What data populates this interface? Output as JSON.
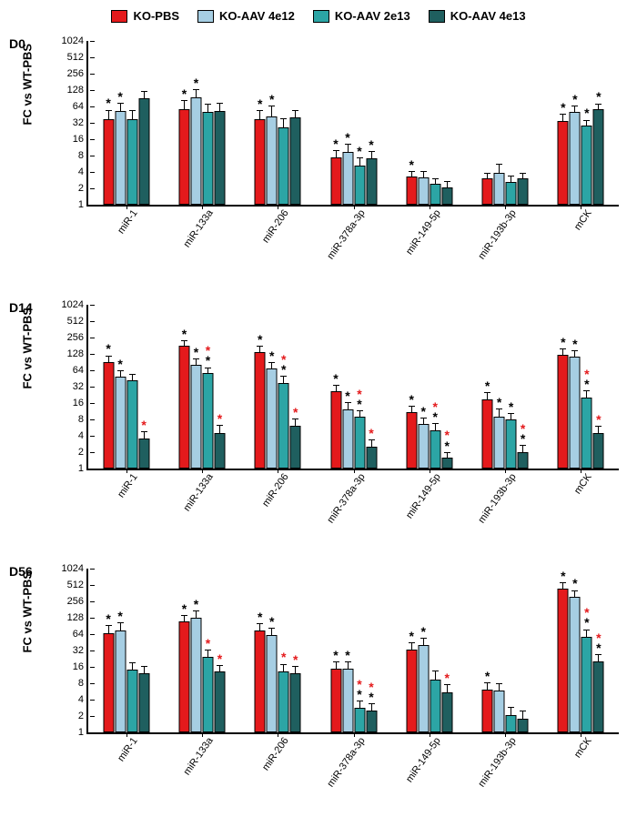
{
  "legend": {
    "items": [
      {
        "label": "KO-PBS",
        "color": "#e41a1c"
      },
      {
        "label": "KO-AAV 4e12",
        "color": "#a6cee3"
      },
      {
        "label": "KO-AAV 2e13",
        "color": "#2ca5a5"
      },
      {
        "label": "KO-AAV 4e13",
        "color": "#1f5f5f"
      }
    ]
  },
  "ylabel": "FC vs WT-PBS",
  "yticks": [
    1,
    2,
    4,
    8,
    16,
    32,
    64,
    128,
    256,
    512,
    1024
  ],
  "ymin_log": 0,
  "ymax_log": 10,
  "categories": [
    "miR-1",
    "miR-133a",
    "miR-206",
    "miR-378a-3p",
    "miR-149-5p",
    "miR-193b-3p",
    "mCK"
  ],
  "series_colors": [
    "#e41a1c",
    "#a6cee3",
    "#2ca5a5",
    "#1f5f5f"
  ],
  "panels": [
    {
      "label": "D0",
      "data": [
        {
          "bars": [
            {
              "v": 38,
              "e": 20,
              "s": [
                "k"
              ]
            },
            {
              "v": 52,
              "e": 25,
              "s": [
                "k"
              ]
            },
            {
              "v": 38,
              "e": 20,
              "s": []
            },
            {
              "v": 90,
              "e": 40,
              "s": []
            }
          ]
        },
        {
          "bars": [
            {
              "v": 58,
              "e": 30,
              "s": [
                "k"
              ]
            },
            {
              "v": 95,
              "e": 45,
              "s": [
                "k"
              ]
            },
            {
              "v": 50,
              "e": 25,
              "s": []
            },
            {
              "v": 52,
              "e": 25,
              "s": []
            }
          ]
        },
        {
          "bars": [
            {
              "v": 38,
              "e": 18,
              "s": [
                "k"
              ]
            },
            {
              "v": 42,
              "e": 28,
              "s": [
                "k"
              ]
            },
            {
              "v": 26,
              "e": 14,
              "s": []
            },
            {
              "v": 40,
              "e": 18,
              "s": []
            }
          ]
        },
        {
          "bars": [
            {
              "v": 7.5,
              "e": 3,
              "s": [
                "k"
              ]
            },
            {
              "v": 9.5,
              "e": 4,
              "s": [
                "k"
              ]
            },
            {
              "v": 5.2,
              "e": 2.5,
              "s": [
                "k"
              ]
            },
            {
              "v": 7,
              "e": 3,
              "s": [
                "k"
              ]
            }
          ]
        },
        {
          "bars": [
            {
              "v": 3.3,
              "e": 1,
              "s": [
                "k"
              ]
            },
            {
              "v": 3.2,
              "e": 1.2,
              "s": []
            },
            {
              "v": 2.4,
              "e": 0.8,
              "s": []
            },
            {
              "v": 2.1,
              "e": 0.7,
              "s": []
            }
          ]
        },
        {
          "bars": [
            {
              "v": 3,
              "e": 1,
              "s": []
            },
            {
              "v": 3.8,
              "e": 2,
              "s": []
            },
            {
              "v": 2.6,
              "e": 1,
              "s": []
            },
            {
              "v": 3,
              "e": 1,
              "s": []
            }
          ]
        },
        {
          "bars": [
            {
              "v": 34,
              "e": 14,
              "s": [
                "k"
              ]
            },
            {
              "v": 50,
              "e": 20,
              "s": [
                "k"
              ]
            },
            {
              "v": 28,
              "e": 10,
              "s": [
                "k"
              ]
            },
            {
              "v": 56,
              "e": 20,
              "s": [
                "k"
              ]
            }
          ]
        }
      ]
    },
    {
      "label": "D14",
      "data": [
        {
          "bars": [
            {
              "v": 90,
              "e": 35,
              "s": [
                "k"
              ]
            },
            {
              "v": 48,
              "e": 18,
              "s": [
                "k"
              ]
            },
            {
              "v": 42,
              "e": 15,
              "s": []
            },
            {
              "v": 3.5,
              "e": 1.5,
              "s": [
                "r"
              ]
            }
          ]
        },
        {
          "bars": [
            {
              "v": 180,
              "e": 60,
              "s": [
                "k"
              ]
            },
            {
              "v": 80,
              "e": 30,
              "s": [
                "k"
              ]
            },
            {
              "v": 56,
              "e": 20,
              "s": [
                "k",
                "r"
              ]
            },
            {
              "v": 4.5,
              "e": 2,
              "s": [
                "r"
              ]
            }
          ]
        },
        {
          "bars": [
            {
              "v": 140,
              "e": 50,
              "s": [
                "k"
              ]
            },
            {
              "v": 68,
              "e": 25,
              "s": [
                "k"
              ]
            },
            {
              "v": 38,
              "e": 14,
              "s": [
                "k",
                "r"
              ]
            },
            {
              "v": 6,
              "e": 2.5,
              "s": [
                "r"
              ]
            }
          ]
        },
        {
          "bars": [
            {
              "v": 26,
              "e": 10,
              "s": [
                "k"
              ]
            },
            {
              "v": 12,
              "e": 5,
              "s": [
                "k"
              ]
            },
            {
              "v": 9,
              "e": 3,
              "s": [
                "k",
                "r"
              ]
            },
            {
              "v": 2.5,
              "e": 1,
              "s": [
                "r"
              ]
            }
          ]
        },
        {
          "bars": [
            {
              "v": 11,
              "e": 4,
              "s": [
                "k"
              ]
            },
            {
              "v": 6.5,
              "e": 2.5,
              "s": [
                "k"
              ]
            },
            {
              "v": 5,
              "e": 2,
              "s": [
                "k",
                "r"
              ]
            },
            {
              "v": 1.6,
              "e": 0.5,
              "s": [
                "k",
                "r"
              ]
            }
          ]
        },
        {
          "bars": [
            {
              "v": 19,
              "e": 7,
              "s": [
                "k"
              ]
            },
            {
              "v": 9,
              "e": 4,
              "s": [
                "k"
              ]
            },
            {
              "v": 8,
              "e": 3,
              "s": [
                "k"
              ]
            },
            {
              "v": 2,
              "e": 0.8,
              "s": [
                "k",
                "r"
              ]
            }
          ]
        },
        {
          "bars": [
            {
              "v": 125,
              "e": 40,
              "s": [
                "k"
              ]
            },
            {
              "v": 115,
              "e": 40,
              "s": [
                "k"
              ]
            },
            {
              "v": 20,
              "e": 8,
              "s": [
                "k",
                "r"
              ]
            },
            {
              "v": 4.5,
              "e": 1.8,
              "s": [
                "r"
              ]
            }
          ]
        }
      ]
    },
    {
      "label": "D56",
      "data": [
        {
          "bars": [
            {
              "v": 66,
              "e": 30,
              "s": [
                "k"
              ]
            },
            {
              "v": 75,
              "e": 35,
              "s": [
                "k"
              ]
            },
            {
              "v": 14,
              "e": 6,
              "s": []
            },
            {
              "v": 12,
              "e": 5,
              "s": []
            }
          ]
        },
        {
          "bars": [
            {
              "v": 110,
              "e": 40,
              "s": [
                "k"
              ]
            },
            {
              "v": 130,
              "e": 50,
              "s": [
                "k"
              ]
            },
            {
              "v": 24,
              "e": 10,
              "s": [
                "r"
              ]
            },
            {
              "v": 13,
              "e": 5,
              "s": [
                "r"
              ]
            }
          ]
        },
        {
          "bars": [
            {
              "v": 75,
              "e": 30,
              "s": [
                "k"
              ]
            },
            {
              "v": 62,
              "e": 25,
              "s": [
                "k"
              ]
            },
            {
              "v": 13,
              "e": 6,
              "s": [
                "r"
              ]
            },
            {
              "v": 12,
              "e": 5,
              "s": [
                "r"
              ]
            }
          ]
        },
        {
          "bars": [
            {
              "v": 15,
              "e": 6,
              "s": [
                "k"
              ]
            },
            {
              "v": 15,
              "e": 6,
              "s": [
                "k"
              ]
            },
            {
              "v": 2.8,
              "e": 1.2,
              "s": [
                "k",
                "r"
              ]
            },
            {
              "v": 2.5,
              "e": 1,
              "s": [
                "k",
                "r"
              ]
            }
          ]
        },
        {
          "bars": [
            {
              "v": 33,
              "e": 14,
              "s": [
                "k"
              ]
            },
            {
              "v": 40,
              "e": 16,
              "s": [
                "k"
              ]
            },
            {
              "v": 9.5,
              "e": 5,
              "s": []
            },
            {
              "v": 5.5,
              "e": 2.5,
              "s": [
                "r"
              ]
            }
          ]
        },
        {
          "bars": [
            {
              "v": 6,
              "e": 2.5,
              "s": [
                "k"
              ]
            },
            {
              "v": 5.8,
              "e": 2.5,
              "s": []
            },
            {
              "v": 2.1,
              "e": 1,
              "s": []
            },
            {
              "v": 1.8,
              "e": 0.8,
              "s": []
            }
          ]
        },
        {
          "bars": [
            {
              "v": 440,
              "e": 150,
              "s": [
                "k"
              ]
            },
            {
              "v": 310,
              "e": 120,
              "s": [
                "k"
              ]
            },
            {
              "v": 58,
              "e": 24,
              "s": [
                "k",
                "r"
              ]
            },
            {
              "v": 20,
              "e": 8,
              "s": [
                "k",
                "r"
              ]
            }
          ]
        }
      ]
    }
  ]
}
